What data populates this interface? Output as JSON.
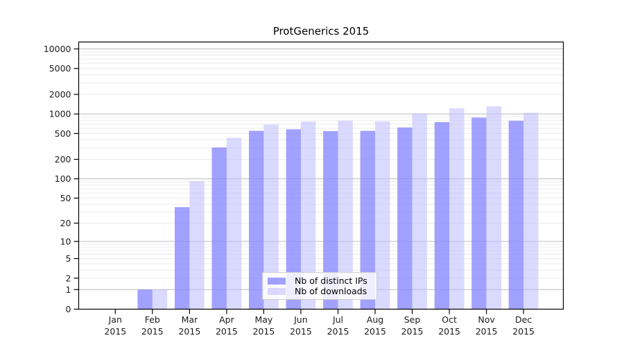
{
  "title": "ProtGenerics 2015",
  "legend": {
    "items": [
      {
        "label": "Nb of distinct IPs",
        "color_key": "ips_bar"
      },
      {
        "label": "Nb of downloads",
        "color_key": "downloads_bar"
      }
    ]
  },
  "colors": {
    "ips_bar": "rgba(134,134,255,0.78)",
    "downloads_bar": "rgba(187,187,255,0.55)",
    "grid_minor": "#ebebeb",
    "grid_major": "#bbbbbb",
    "axis": "#000000",
    "tick_text": "#1a1a1a"
  },
  "chart_data": {
    "type": "bar",
    "title": "ProtGenerics 2015",
    "categories": [
      "Jan",
      "Feb",
      "Mar",
      "Apr",
      "May",
      "Jun",
      "Jul",
      "Aug",
      "Sep",
      "Oct",
      "Nov",
      "Dec"
    ],
    "category_year": "2015",
    "series": [
      {
        "name": "Nb of distinct IPs",
        "values": [
          0,
          1,
          36,
          305,
          550,
          580,
          545,
          550,
          620,
          750,
          880,
          785
        ]
      },
      {
        "name": "Nb of downloads",
        "values": [
          0,
          1,
          92,
          430,
          690,
          765,
          790,
          770,
          1020,
          1220,
          1310,
          1045
        ]
      }
    ],
    "xlabel": "",
    "ylabel": "",
    "y_scale": "log10(value+1)",
    "y_ticks": [
      0,
      1,
      2,
      5,
      10,
      20,
      50,
      100,
      200,
      500,
      1000,
      2000,
      5000,
      10000
    ],
    "ylim": [
      0,
      12500
    ],
    "grid": "horizontal, minor lines at 2-9 per decade, darker lines at powers of 10",
    "legend_position": "lower center-right inside plot"
  }
}
